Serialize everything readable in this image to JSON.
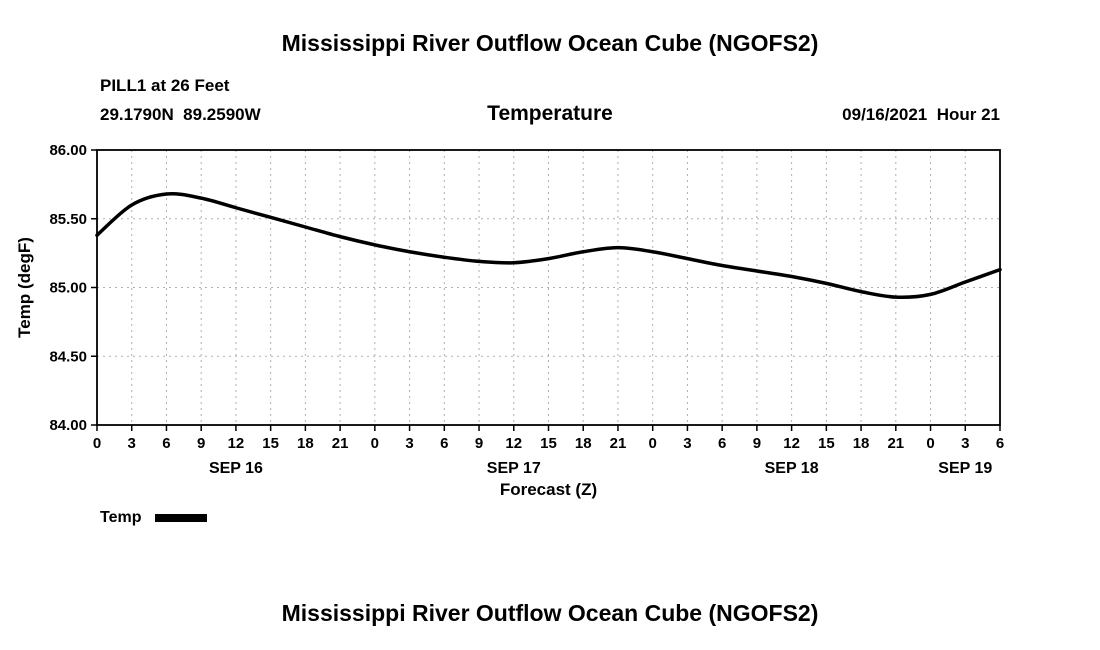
{
  "page": {
    "title_top": "Mississippi River Outflow Ocean Cube (NGOFS2)",
    "title_bottom": "Mississippi River Outflow Ocean Cube (NGOFS2)"
  },
  "header": {
    "station": "PILL1 at 26 Feet",
    "coordinates": "29.1790N  89.2590W",
    "plot_title": "Temperature",
    "datetime": "09/16/2021  Hour 21"
  },
  "legend": {
    "label": "Temp",
    "line_color": "#000000"
  },
  "chart_data": {
    "type": "line",
    "title": "Temperature",
    "xlabel": "Forecast (Z)",
    "ylabel": "Temp (degF)",
    "grid": true,
    "legend_position": "bottom-left",
    "ylim": [
      84.0,
      86.0
    ],
    "y_ticks": [
      84.0,
      84.5,
      85.0,
      85.5,
      86.0
    ],
    "y_tick_labels": [
      "84.00",
      "84.50",
      "85.00",
      "85.50",
      "86.00"
    ],
    "xlim": [
      0,
      78
    ],
    "x_ticks": [
      0,
      3,
      6,
      9,
      12,
      15,
      18,
      21,
      24,
      27,
      30,
      33,
      36,
      39,
      42,
      45,
      48,
      51,
      54,
      57,
      60,
      63,
      66,
      69,
      72,
      75,
      78
    ],
    "x_tick_labels": [
      "0",
      "3",
      "6",
      "9",
      "12",
      "15",
      "18",
      "21",
      "0",
      "3",
      "6",
      "9",
      "12",
      "15",
      "18",
      "21",
      "0",
      "3",
      "6",
      "9",
      "12",
      "15",
      "18",
      "21",
      "0",
      "3",
      "6"
    ],
    "day_labels": [
      {
        "label": "SEP 16",
        "hour": 12
      },
      {
        "label": "SEP 17",
        "hour": 36
      },
      {
        "label": "SEP 18",
        "hour": 60
      },
      {
        "label": "SEP 19",
        "hour": 75
      }
    ],
    "series": [
      {
        "name": "Temp",
        "color": "#000000",
        "x": [
          0,
          3,
          6,
          9,
          12,
          15,
          18,
          21,
          24,
          27,
          30,
          33,
          36,
          39,
          42,
          45,
          48,
          51,
          54,
          57,
          60,
          63,
          66,
          69,
          72,
          75,
          78
        ],
        "y": [
          85.38,
          85.6,
          85.68,
          85.65,
          85.58,
          85.51,
          85.44,
          85.37,
          85.31,
          85.26,
          85.22,
          85.19,
          85.18,
          85.21,
          85.26,
          85.29,
          85.26,
          85.21,
          85.16,
          85.12,
          85.08,
          85.03,
          84.97,
          84.93,
          84.95,
          85.04,
          85.13
        ]
      }
    ]
  }
}
